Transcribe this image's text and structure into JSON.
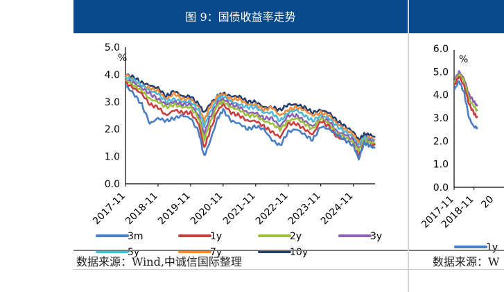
{
  "left_panel": {
    "title": "图 9：国债收益率走势",
    "source": "数据来源：Wind,中诚信国际整理",
    "y_unit": "%"
  },
  "right_panel": {
    "source": "数据来源：W",
    "y_unit": "%"
  },
  "chart_data": [
    {
      "type": "line",
      "title": "图 9：国债收益率走势",
      "ylabel": "%",
      "ylim": [
        0,
        5
      ],
      "y_ticks": [
        "0.0",
        "1.0",
        "2.0",
        "3.0",
        "4.0",
        "5.0"
      ],
      "x_ticks": [
        "2017-11",
        "2018-11",
        "2019-11",
        "2020-11",
        "2021-11",
        "2022-11",
        "2023-11",
        "2024-11"
      ],
      "x_range": [
        "2017-11",
        "2025-07"
      ],
      "legend_placement": "bottom",
      "x": [
        "2017-11",
        "2018-02",
        "2018-05",
        "2018-08",
        "2018-11",
        "2019-02",
        "2019-05",
        "2019-08",
        "2019-11",
        "2020-02",
        "2020-04",
        "2020-06",
        "2020-09",
        "2020-11",
        "2021-02",
        "2021-05",
        "2021-08",
        "2021-11",
        "2022-02",
        "2022-05",
        "2022-08",
        "2022-11",
        "2023-02",
        "2023-05",
        "2023-08",
        "2023-11",
        "2024-02",
        "2024-05",
        "2024-08",
        "2024-11",
        "2025-01",
        "2025-03",
        "2025-05",
        "2025-07"
      ],
      "series": [
        {
          "name": "3m",
          "color": "#4a7ec4",
          "values": [
            3.6,
            3.3,
            2.9,
            2.2,
            2.4,
            2.3,
            2.4,
            2.5,
            2.4,
            1.9,
            1.0,
            1.5,
            2.4,
            2.7,
            2.3,
            2.2,
            2.0,
            2.1,
            2.0,
            1.6,
            1.4,
            1.9,
            2.0,
            1.8,
            1.6,
            2.1,
            2.0,
            1.8,
            1.6,
            1.4,
            0.9,
            1.5,
            1.4,
            1.3
          ]
        },
        {
          "name": "1y",
          "color": "#c94040",
          "values": [
            3.7,
            3.5,
            3.3,
            2.9,
            2.8,
            2.5,
            2.7,
            2.6,
            2.6,
            2.2,
            1.3,
            1.9,
            2.7,
            2.9,
            2.6,
            2.5,
            2.3,
            2.3,
            2.1,
            1.9,
            1.7,
            2.2,
            2.2,
            2.0,
            1.8,
            2.3,
            2.1,
            1.7,
            1.6,
            1.4,
            1.0,
            1.5,
            1.4,
            1.4
          ]
        },
        {
          "name": "2y",
          "color": "#9bbf3f",
          "values": [
            3.8,
            3.6,
            3.4,
            3.1,
            3.0,
            2.8,
            2.9,
            2.8,
            2.8,
            2.4,
            1.6,
            2.2,
            2.9,
            3.0,
            2.8,
            2.7,
            2.5,
            2.5,
            2.3,
            2.2,
            2.0,
            2.3,
            2.4,
            2.2,
            2.0,
            2.4,
            2.2,
            1.8,
            1.7,
            1.5,
            1.2,
            1.6,
            1.5,
            1.5
          ]
        },
        {
          "name": "3y",
          "color": "#8d62b3",
          "values": [
            3.8,
            3.7,
            3.5,
            3.3,
            3.1,
            2.9,
            3.0,
            2.9,
            2.9,
            2.5,
            1.8,
            2.4,
            3.0,
            3.1,
            2.9,
            2.8,
            2.6,
            2.6,
            2.4,
            2.4,
            2.1,
            2.5,
            2.5,
            2.3,
            2.1,
            2.4,
            2.3,
            1.9,
            1.8,
            1.6,
            1.3,
            1.6,
            1.6,
            1.5
          ]
        },
        {
          "name": "5y",
          "color": "#4fb9d9",
          "values": [
            3.9,
            3.8,
            3.6,
            3.4,
            3.3,
            3.0,
            3.1,
            3.0,
            3.0,
            2.7,
            2.1,
            2.6,
            3.1,
            3.2,
            3.0,
            2.9,
            2.8,
            2.8,
            2.6,
            2.6,
            2.3,
            2.6,
            2.7,
            2.5,
            2.3,
            2.5,
            2.4,
            2.1,
            1.9,
            1.7,
            1.4,
            1.7,
            1.6,
            1.6
          ]
        },
        {
          "name": "7y",
          "color": "#f08c3a",
          "values": [
            4.0,
            3.8,
            3.6,
            3.5,
            3.4,
            3.1,
            3.3,
            3.1,
            3.1,
            2.8,
            2.3,
            2.8,
            3.2,
            3.3,
            3.1,
            3.1,
            2.9,
            2.9,
            2.7,
            2.8,
            2.5,
            2.7,
            2.8,
            2.7,
            2.5,
            2.6,
            2.5,
            2.2,
            2.0,
            1.8,
            1.5,
            1.7,
            1.7,
            1.6
          ]
        },
        {
          "name": "10y",
          "color": "#213e6e",
          "values": [
            4.0,
            3.9,
            3.7,
            3.6,
            3.5,
            3.2,
            3.4,
            3.2,
            3.2,
            2.9,
            2.6,
            2.9,
            3.2,
            3.3,
            3.2,
            3.2,
            3.0,
            3.0,
            2.8,
            2.8,
            2.7,
            2.9,
            2.9,
            2.8,
            2.6,
            2.7,
            2.6,
            2.3,
            2.1,
            1.9,
            1.6,
            1.8,
            1.8,
            1.7
          ]
        }
      ]
    },
    {
      "type": "line",
      "ylabel": "%",
      "ylim": [
        0,
        6
      ],
      "y_ticks": [
        "0.0",
        "1.0",
        "2.0",
        "3.0",
        "4.0",
        "5.0",
        "6.0"
      ],
      "x_ticks": [
        "2017-11",
        "2018-11",
        "20"
      ],
      "legend_placement": "bottom",
      "x": [
        "2017-11",
        "2018-02",
        "2018-05",
        "2018-08",
        "2018-11",
        "2019-01"
      ],
      "series": [
        {
          "name": "1y",
          "color": "#4a7ec4",
          "values": [
            4.2,
            4.6,
            4.1,
            3.0,
            2.6,
            2.6
          ]
        },
        {
          "name": "",
          "color": "#c94040",
          "values": [
            4.4,
            4.8,
            4.4,
            3.6,
            3.2,
            3.0
          ]
        },
        {
          "name": "",
          "color": "#9bbf3f",
          "values": [
            4.5,
            4.9,
            4.6,
            3.8,
            3.5,
            3.3
          ]
        },
        {
          "name": "",
          "color": "#8d62b3",
          "values": [
            4.6,
            5.0,
            4.7,
            4.0,
            3.7,
            3.5
          ]
        }
      ]
    }
  ]
}
